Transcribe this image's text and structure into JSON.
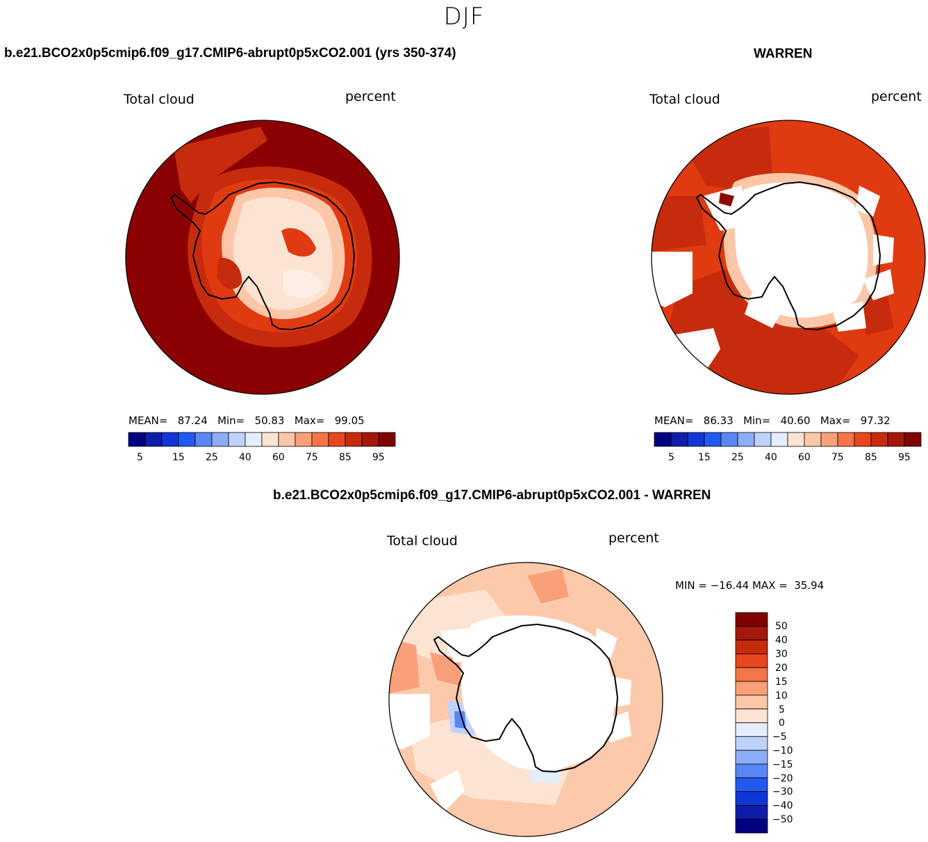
{
  "page_title": "DJF",
  "colors": {
    "cb_abs": [
      "#000080",
      "#0e1ea8",
      "#1036d6",
      "#2259f0",
      "#5a86f5",
      "#8dacf7",
      "#bfd3fa",
      "#e3edfc",
      "#fde3d2",
      "#fcc6a8",
      "#f9a07a",
      "#f57448",
      "#e8461d",
      "#c72b0d",
      "#a3180a",
      "#800000"
    ],
    "cb_diff": [
      "#800000",
      "#a3180a",
      "#c72b0d",
      "#e8461d",
      "#f57448",
      "#f9a07a",
      "#fcc6a8",
      "#fde3d2",
      "#e3edfc",
      "#bfd3fa",
      "#8dacf7",
      "#5a86f5",
      "#2259f0",
      "#1036d6",
      "#0e1ea8",
      "#000080"
    ],
    "map_dark": "#8b0000",
    "map_mid": "#c72b0d",
    "map_orange": "#e03a10",
    "map_light": "#fcc6a8",
    "diff_fill": "#fcc9ab"
  },
  "chart_data": [
    {
      "type": "heatmap",
      "title": "b.e21.BCO2x0p5cmip6.f09_g17.CMIP6-abrupt0p5xCO2.001 (yrs 350-374)",
      "variable": "Total cloud",
      "units": "percent",
      "stats": {
        "mean_label": "MEAN=",
        "mean": "87.24",
        "min_label": "Min=",
        "min": "50.83",
        "max_label": "Max=",
        "max": "99.05"
      },
      "colorbar_ticks": [
        "5",
        "15",
        "25",
        "40",
        "60",
        "75",
        "85",
        "95"
      ]
    },
    {
      "type": "heatmap",
      "title": "WARREN",
      "variable": "Total cloud",
      "units": "percent",
      "stats": {
        "mean_label": "MEAN=",
        "mean": "86.33",
        "min_label": "Min=",
        "min": "40.60",
        "max_label": "Max=",
        "max": "97.32"
      },
      "colorbar_ticks": [
        "5",
        "15",
        "25",
        "40",
        "60",
        "75",
        "85",
        "95"
      ]
    },
    {
      "type": "heatmap",
      "title": "b.e21.BCO2x0p5cmip6.f09_g17.CMIP6-abrupt0p5xCO2.001 - WARREN",
      "variable": "Total cloud",
      "units": "percent",
      "stats_text": "MIN = −16.44 MAX =  35.94",
      "colorbar_ticks": [
        "50",
        "40",
        "30",
        "20",
        "15",
        "10",
        "5",
        "0",
        "−5",
        "−10",
        "−15",
        "−20",
        "−30",
        "−40",
        "−50"
      ]
    }
  ]
}
